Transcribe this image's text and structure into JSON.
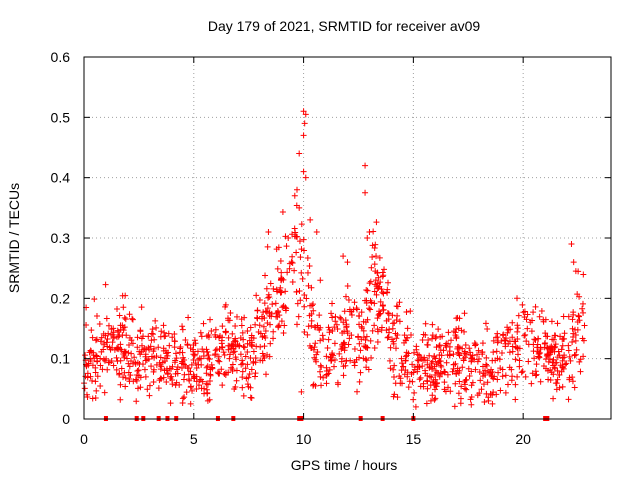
{
  "chart_data": {
    "type": "scatter",
    "title": "Day 179 of 2021, SRMTID for receiver av09",
    "xlabel": "GPS time / hours",
    "ylabel": "SRMTID / TECUs",
    "xlim": [
      0,
      24
    ],
    "ylim": [
      0,
      0.6
    ],
    "x_ticks": [
      0,
      5,
      10,
      15,
      20
    ],
    "x_tick_labels": [
      "0",
      "5",
      "10",
      "15",
      "20"
    ],
    "y_ticks": [
      0,
      0.1,
      0.2,
      0.3,
      0.4,
      0.5,
      0.6
    ],
    "y_tick_labels": [
      "0",
      "0.1",
      "0.2",
      "0.3",
      "0.4",
      "0.5",
      "0.6"
    ],
    "grid": true,
    "series_color": "#ff0000",
    "marker": "plus",
    "baseline_markers_x": [
      1.0,
      2.4,
      2.7,
      3.4,
      3.8,
      4.2,
      6.1,
      6.8,
      9.8,
      9.9,
      12.6,
      13.6,
      15.0,
      21.0,
      21.1
    ],
    "trend_keyframes_x": [
      0,
      1.5,
      2.5,
      3.5,
      4.5,
      5.5,
      6.5,
      7.5,
      8.0,
      9.0,
      9.6,
      10.0,
      10.5,
      11.0,
      12.0,
      12.8,
      13.3,
      14.0,
      15.0,
      16.0,
      17.0,
      18.5,
      19.5,
      20.5,
      21.0,
      21.5,
      22.0,
      22.5,
      22.8
    ],
    "trend_keyframes_y": [
      0.08,
      0.13,
      0.1,
      0.09,
      0.09,
      0.1,
      0.12,
      0.1,
      0.14,
      0.2,
      0.28,
      0.25,
      0.12,
      0.1,
      0.15,
      0.13,
      0.22,
      0.13,
      0.1,
      0.09,
      0.1,
      0.08,
      0.11,
      0.13,
      0.12,
      0.09,
      0.11,
      0.15,
      0.16
    ],
    "outlier_points": [
      {
        "x": 10.0,
        "y": 0.51
      },
      {
        "x": 10.1,
        "y": 0.505
      },
      {
        "x": 10.05,
        "y": 0.49
      },
      {
        "x": 10.0,
        "y": 0.47
      },
      {
        "x": 9.8,
        "y": 0.44
      },
      {
        "x": 10.0,
        "y": 0.41
      },
      {
        "x": 10.1,
        "y": 0.4
      },
      {
        "x": 12.8,
        "y": 0.42
      },
      {
        "x": 12.8,
        "y": 0.375
      },
      {
        "x": 9.7,
        "y": 0.38
      },
      {
        "x": 9.6,
        "y": 0.37
      },
      {
        "x": 9.8,
        "y": 0.35
      },
      {
        "x": 10.3,
        "y": 0.33
      },
      {
        "x": 10.6,
        "y": 0.31
      },
      {
        "x": 13.0,
        "y": 0.31
      },
      {
        "x": 12.9,
        "y": 0.3
      },
      {
        "x": 8.4,
        "y": 0.31
      },
      {
        "x": 9.3,
        "y": 0.3
      },
      {
        "x": 22.2,
        "y": 0.29
      },
      {
        "x": 22.3,
        "y": 0.26
      },
      {
        "x": 22.4,
        "y": 0.245
      },
      {
        "x": 13.3,
        "y": 0.27
      },
      {
        "x": 11.8,
        "y": 0.27
      },
      {
        "x": 12.0,
        "y": 0.26
      },
      {
        "x": 9.9,
        "y": 0.045
      },
      {
        "x": 15.8,
        "y": 0.03
      },
      {
        "x": 18.6,
        "y": 0.025
      }
    ],
    "n_points": 1400,
    "random_seed": 179
  }
}
